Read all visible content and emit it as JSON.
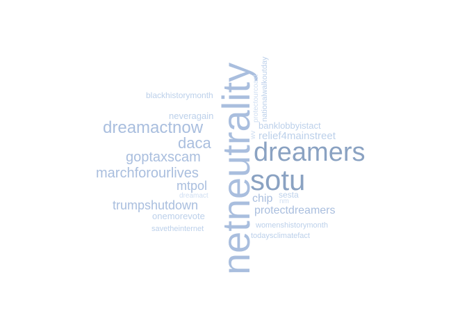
{
  "words": {
    "netneutrality": "netneutrality",
    "dreamers": "dreamers",
    "sotu": "sotu",
    "dreamactnow": "dreamactnow",
    "daca": "daca",
    "goptaxscam": "goptaxscam",
    "marchforourlives": "marchforourlives",
    "mtpol": "mtpol",
    "trumpshutdown": "trumpshutdown",
    "chip": "chip",
    "protectdreamers": "protectdreamers",
    "relief4mainstreet": "relief4mainstreet",
    "banklobbyistact": "banklobbyistact",
    "neveragain": "neveragain",
    "onemorevote": "onemorevote",
    "blackhistorymonth": "blackhistorymonth",
    "savetheinternet": "savetheinternet",
    "womenshistorymonth": "womenshistorymonth",
    "todaysclimatefact": "todaysclimatefact",
    "dreamact": "dreamact",
    "sesta": "sesta",
    "nm": "nm",
    "nationalwalkoutday": "nationalwalkoutday",
    "protectourcoast": "protectourcoast",
    "wv": "wv"
  },
  "colors": {
    "tier1": "#8aa2c2",
    "tier2": "#a9bede",
    "tier3": "#bcd0ea",
    "tier4": "#cfdef2",
    "background": "#ffffff"
  }
}
